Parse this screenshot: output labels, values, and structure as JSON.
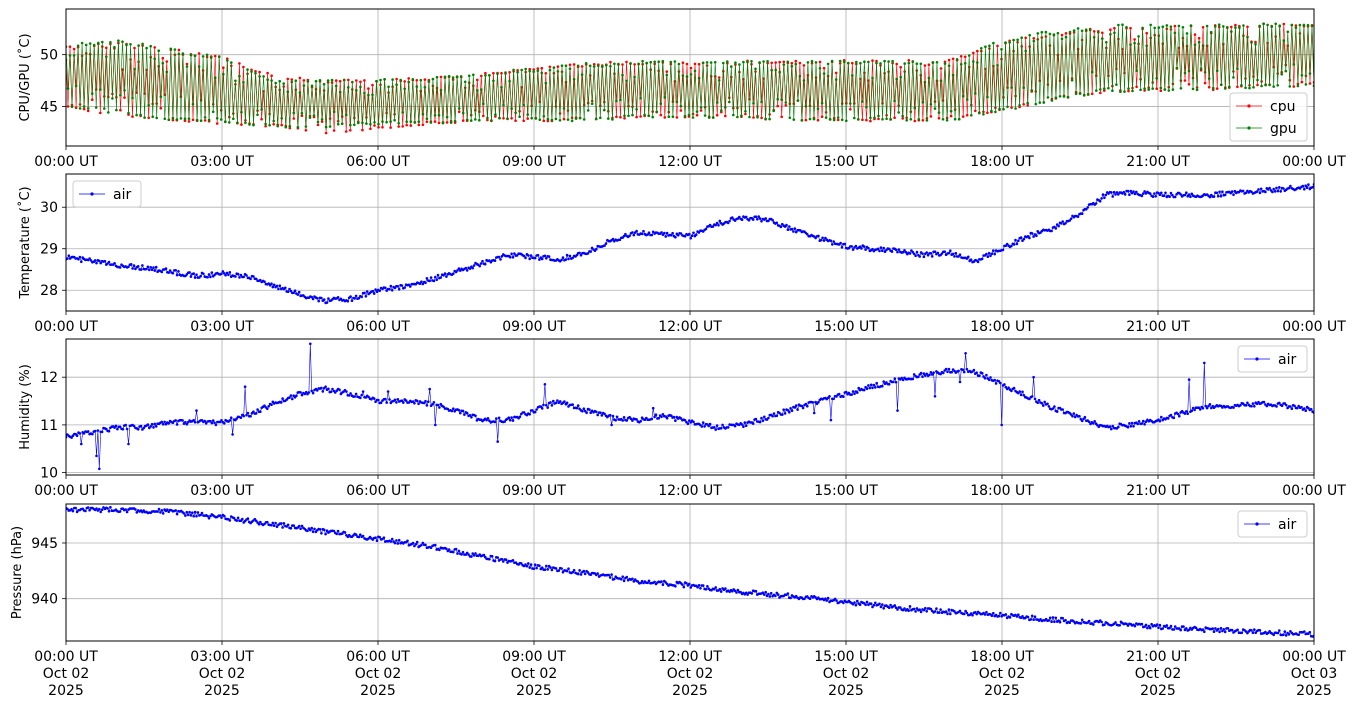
{
  "chart_data": [
    {
      "type": "line",
      "ylabel": "CPU/GPU (˚C)",
      "ylim": [
        41.2,
        54.4
      ],
      "yticks": [
        45,
        50
      ],
      "grid": true,
      "legend_placement": "bottom-right",
      "x_start": "2025-10-02 00:00",
      "x_end": "2025-10-03 00:00",
      "series": [
        {
          "name": "cpu",
          "color": "#ff0000",
          "style": "oscillating",
          "x_hours": [
            0,
            1,
            2,
            3,
            4,
            5,
            6,
            7,
            8,
            9,
            10,
            11,
            12,
            13,
            14,
            15,
            16,
            17,
            18,
            19,
            20,
            21,
            22,
            23,
            24
          ],
          "low": [
            45,
            44,
            43.6,
            43.3,
            43,
            42.4,
            42.8,
            43.3,
            43.6,
            43.6,
            43.6,
            43.9,
            43.9,
            43.9,
            43.6,
            43.6,
            43.6,
            43.6,
            44.5,
            45.5,
            46.4,
            46.5,
            46.6,
            46.8,
            47
          ],
          "high": [
            50.8,
            51.2,
            50.6,
            49.8,
            48,
            47.6,
            47.6,
            47.8,
            48.2,
            48.8,
            49.2,
            49.4,
            49.4,
            49.4,
            49.5,
            49.5,
            49.5,
            49.5,
            51.3,
            52.1,
            52.7,
            52.8,
            52.8,
            53,
            53
          ]
        },
        {
          "name": "gpu",
          "color": "#008000",
          "style": "oscillating",
          "x_hours": [
            0,
            1,
            2,
            3,
            4,
            5,
            6,
            7,
            8,
            9,
            10,
            11,
            12,
            13,
            14,
            15,
            16,
            17,
            18,
            19,
            20,
            21,
            22,
            23,
            24
          ],
          "low": [
            45,
            44.2,
            43.6,
            43.3,
            43,
            43,
            43.3,
            43.3,
            43.6,
            43.6,
            43.6,
            43.9,
            43.9,
            43.9,
            43.6,
            43.6,
            43.6,
            43.6,
            44.5,
            45.5,
            46.4,
            46.5,
            46.6,
            46.8,
            47
          ],
          "high": [
            51,
            51.5,
            50.6,
            49.8,
            47.6,
            47.6,
            47.6,
            47.8,
            48.2,
            48.8,
            49.2,
            49.4,
            49.4,
            49.4,
            49.4,
            49.4,
            49.4,
            49.4,
            51.6,
            52.4,
            52.9,
            52.9,
            52.9,
            53,
            53
          ]
        }
      ]
    },
    {
      "type": "scatter",
      "ylabel": "Temperature (˚C)",
      "ylim": [
        27.5,
        30.8
      ],
      "yticks": [
        28,
        29,
        30
      ],
      "grid": true,
      "legend_placement": "top-left",
      "x_start": "2025-10-02 00:00",
      "x_end": "2025-10-03 00:00",
      "series": [
        {
          "name": "air",
          "color": "#0000ff",
          "x_hours": [
            0,
            0.5,
            1,
            1.5,
            2,
            2.5,
            3,
            3.5,
            4,
            4.5,
            5,
            5.5,
            6,
            6.5,
            7,
            7.5,
            8,
            8.5,
            9,
            9.5,
            10,
            10.5,
            11,
            11.5,
            12,
            12.5,
            13,
            13.5,
            14,
            14.5,
            15,
            15.5,
            16,
            16.5,
            17,
            17.5,
            18,
            18.5,
            19,
            19.5,
            20,
            20.5,
            21,
            21.5,
            22,
            22.5,
            23,
            23.5,
            24
          ],
          "values": [
            28.8,
            28.7,
            28.6,
            28.55,
            28.45,
            28.35,
            28.4,
            28.35,
            28.1,
            27.9,
            27.75,
            27.8,
            28.0,
            28.1,
            28.25,
            28.45,
            28.65,
            28.85,
            28.8,
            28.75,
            28.9,
            29.2,
            29.4,
            29.35,
            29.3,
            29.6,
            29.75,
            29.7,
            29.45,
            29.25,
            29.05,
            29.0,
            28.95,
            28.85,
            28.9,
            28.7,
            29.0,
            29.3,
            29.5,
            29.85,
            30.3,
            30.35,
            30.3,
            30.3,
            30.3,
            30.35,
            30.4,
            30.45,
            30.5
          ]
        }
      ]
    },
    {
      "type": "scatter",
      "ylabel": "Humidity (%)",
      "ylim": [
        9.95,
        12.8
      ],
      "yticks": [
        10,
        11,
        12
      ],
      "grid": true,
      "legend_placement": "top-right",
      "x_start": "2025-10-02 00:00",
      "x_end": "2025-10-03 00:00",
      "series": [
        {
          "name": "air",
          "color": "#0000ff",
          "x_hours": [
            0,
            0.5,
            1,
            1.5,
            2,
            2.5,
            3,
            3.5,
            4,
            4.5,
            5,
            5.5,
            6,
            6.5,
            7,
            7.5,
            8,
            8.5,
            9,
            9.5,
            10,
            10.5,
            11,
            11.5,
            12,
            12.5,
            13,
            13.5,
            14,
            14.5,
            15,
            15.5,
            16,
            16.5,
            17,
            17.5,
            18,
            18.5,
            19,
            19.5,
            20,
            20.5,
            21,
            21.5,
            22,
            22.5,
            23,
            23.5,
            24
          ],
          "values": [
            10.75,
            10.85,
            10.95,
            10.95,
            11.05,
            11.05,
            11.05,
            11.2,
            11.45,
            11.65,
            11.75,
            11.65,
            11.5,
            11.5,
            11.45,
            11.3,
            11.1,
            11.1,
            11.3,
            11.5,
            11.3,
            11.15,
            11.1,
            11.2,
            11.05,
            10.95,
            11.0,
            11.15,
            11.35,
            11.5,
            11.65,
            11.8,
            11.95,
            12.05,
            12.15,
            12.1,
            11.85,
            11.6,
            11.35,
            11.15,
            10.95,
            11.0,
            11.1,
            11.25,
            11.4,
            11.4,
            11.45,
            11.4,
            11.3
          ],
          "spikes": [
            [
              0.3,
              10.6
            ],
            [
              0.6,
              10.35
            ],
            [
              0.65,
              10.08
            ],
            [
              1.2,
              10.6
            ],
            [
              2.5,
              11.3
            ],
            [
              3.2,
              10.8
            ],
            [
              3.45,
              11.8
            ],
            [
              4.7,
              12.7
            ],
            [
              5.0,
              11.8
            ],
            [
              5.7,
              11.7
            ],
            [
              6.2,
              11.7
            ],
            [
              7.0,
              11.75
            ],
            [
              7.1,
              11.0
            ],
            [
              8.3,
              10.65
            ],
            [
              9.2,
              11.85
            ],
            [
              10.5,
              11.0
            ],
            [
              11.3,
              11.35
            ],
            [
              14.4,
              11.25
            ],
            [
              14.7,
              11.1
            ],
            [
              16.0,
              11.3
            ],
            [
              16.7,
              11.6
            ],
            [
              17.3,
              12.5
            ],
            [
              17.2,
              11.9
            ],
            [
              18.0,
              11.0
            ],
            [
              18.6,
              12.0
            ],
            [
              21.6,
              11.95
            ],
            [
              21.9,
              12.3
            ]
          ]
        }
      ]
    },
    {
      "type": "scatter",
      "ylabel": "Pressure (hPa)",
      "ylim": [
        936.2,
        948.5
      ],
      "yticks": [
        940,
        945
      ],
      "grid": true,
      "legend_placement": "top-right",
      "x_start": "2025-10-02 00:00",
      "x_end": "2025-10-03 00:00",
      "series": [
        {
          "name": "air",
          "color": "#0000ff",
          "x_hours": [
            0,
            1,
            2,
            3,
            4,
            5,
            6,
            7,
            8,
            9,
            10,
            11,
            12,
            13,
            14,
            15,
            16,
            17,
            18,
            19,
            20,
            21,
            22,
            23,
            24
          ],
          "values": [
            948.0,
            948.0,
            947.8,
            947.3,
            946.7,
            946.0,
            945.4,
            944.7,
            943.8,
            942.9,
            942.3,
            941.6,
            941.2,
            940.6,
            940.2,
            939.7,
            939.2,
            938.8,
            938.5,
            938.1,
            937.8,
            937.5,
            937.2,
            937.0,
            936.8
          ]
        }
      ]
    }
  ],
  "x_tick_labels": [
    "00:00 UT",
    "03:00 UT",
    "06:00 UT",
    "09:00 UT",
    "12:00 UT",
    "15:00 UT",
    "18:00 UT",
    "21:00 UT",
    "00:00 UT"
  ],
  "x_date_labels": [
    "Oct 02",
    "Oct 02",
    "Oct 02",
    "Oct 02",
    "Oct 02",
    "Oct 02",
    "Oct 02",
    "Oct 02",
    "Oct 03"
  ],
  "x_year_labels": [
    "2025",
    "2025",
    "2025",
    "2025",
    "2025",
    "2025",
    "2025",
    "2025",
    "2025"
  ]
}
